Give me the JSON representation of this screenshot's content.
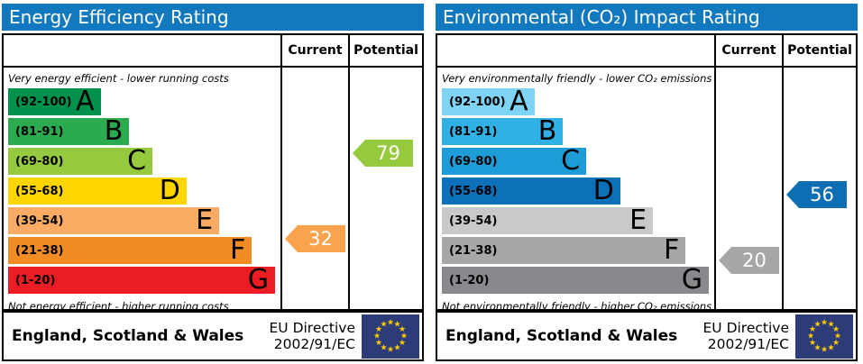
{
  "header_color": "#1379bf",
  "eu_flag": {
    "background": "#2d3c79",
    "stars": "#ffcc00"
  },
  "panels": [
    {
      "title": "Energy Efficiency Rating",
      "columns": {
        "current": "Current",
        "potential": "Potential"
      },
      "top_note": "Very energy efficient - lower running costs",
      "bottom_note": "Not energy efficient - higher running costs",
      "bands": [
        {
          "range": "(92-100)",
          "letter": "A",
          "color": "#00914d"
        },
        {
          "range": "(81-91)",
          "letter": "B",
          "color": "#2caa50"
        },
        {
          "range": "(69-80)",
          "letter": "C",
          "color": "#95ca3e"
        },
        {
          "range": "(55-68)",
          "letter": "D",
          "color": "#ffd500"
        },
        {
          "range": "(39-54)",
          "letter": "E",
          "color": "#fbab63"
        },
        {
          "range": "(21-38)",
          "letter": "F",
          "color": "#f08c23"
        },
        {
          "range": "(1-20)",
          "letter": "G",
          "color": "#ec1c24"
        }
      ],
      "current": {
        "value": 32,
        "color": "#f9a34c"
      },
      "potential": {
        "value": 79,
        "color": "#94ca3b"
      },
      "footer": {
        "region": "England, Scotland & Wales",
        "directive_line1": "EU Directive",
        "directive_line2": "2002/91/EC"
      }
    },
    {
      "title": "Environmental (CO₂) Impact Rating",
      "columns": {
        "current": "Current",
        "potential": "Potential"
      },
      "top_note": "Very environmentally friendly - lower CO₂ emissions",
      "bottom_note": "Not environmentally friendly - higher CO₂ emissions",
      "bands": [
        {
          "range": "(92-100)",
          "letter": "A",
          "color": "#7fd3f5"
        },
        {
          "range": "(81-91)",
          "letter": "B",
          "color": "#30b0e5"
        },
        {
          "range": "(69-80)",
          "letter": "C",
          "color": "#1d9cd8"
        },
        {
          "range": "(55-68)",
          "letter": "D",
          "color": "#0c71b8"
        },
        {
          "range": "(39-54)",
          "letter": "E",
          "color": "#c8c9cb"
        },
        {
          "range": "(21-38)",
          "letter": "F",
          "color": "#a5a7a9"
        },
        {
          "range": "(1-20)",
          "letter": "G",
          "color": "#87898c"
        }
      ],
      "current": {
        "value": 20,
        "color": "#a5a7a9"
      },
      "potential": {
        "value": 56,
        "color": "#0d6eb4"
      },
      "footer": {
        "region": "England, Scotland & Wales",
        "directive_line1": "EU Directive",
        "directive_line2": "2002/91/EC"
      }
    }
  ],
  "chart_data": [
    {
      "type": "bar",
      "title": "Energy Efficiency Rating",
      "categories": [
        "A (92-100)",
        "B (81-91)",
        "C (69-80)",
        "D (55-68)",
        "E (39-54)",
        "F (21-38)",
        "G (1-20)"
      ],
      "scale_range": [
        1,
        100
      ],
      "series": [
        {
          "name": "Current",
          "value": 32,
          "band": "F"
        },
        {
          "name": "Potential",
          "value": 79,
          "band": "C"
        }
      ],
      "annotations": [
        "Very energy efficient - lower running costs",
        "Not energy efficient - higher running costs",
        "England, Scotland & Wales",
        "EU Directive 2002/91/EC"
      ]
    },
    {
      "type": "bar",
      "title": "Environmental (CO₂) Impact Rating",
      "categories": [
        "A (92-100)",
        "B (81-91)",
        "C (69-80)",
        "D (55-68)",
        "E (39-54)",
        "F (21-38)",
        "G (1-20)"
      ],
      "scale_range": [
        1,
        100
      ],
      "series": [
        {
          "name": "Current",
          "value": 20,
          "band": "G"
        },
        {
          "name": "Potential",
          "value": 56,
          "band": "D"
        }
      ],
      "annotations": [
        "Very environmentally friendly - lower CO₂ emissions",
        "Not environmentally friendly - higher CO₂ emissions",
        "England, Scotland & Wales",
        "EU Directive 2002/91/EC"
      ]
    }
  ]
}
